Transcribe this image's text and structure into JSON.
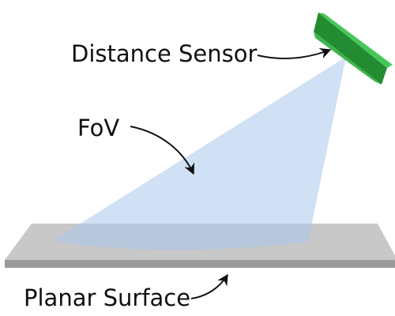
{
  "labels": {
    "distance_sensor": "Distance Sensor",
    "fov": "FoV",
    "planar_surface": "Planar Surface"
  },
  "colors": {
    "sensor_face": "#3bb54a",
    "sensor_top": "#46c858",
    "sensor_side": "#238c33",
    "fov_fill": "#aac7ec",
    "surface_top": "#c8c8c8",
    "surface_front": "#9a9a9a",
    "arrow": "#111111"
  }
}
